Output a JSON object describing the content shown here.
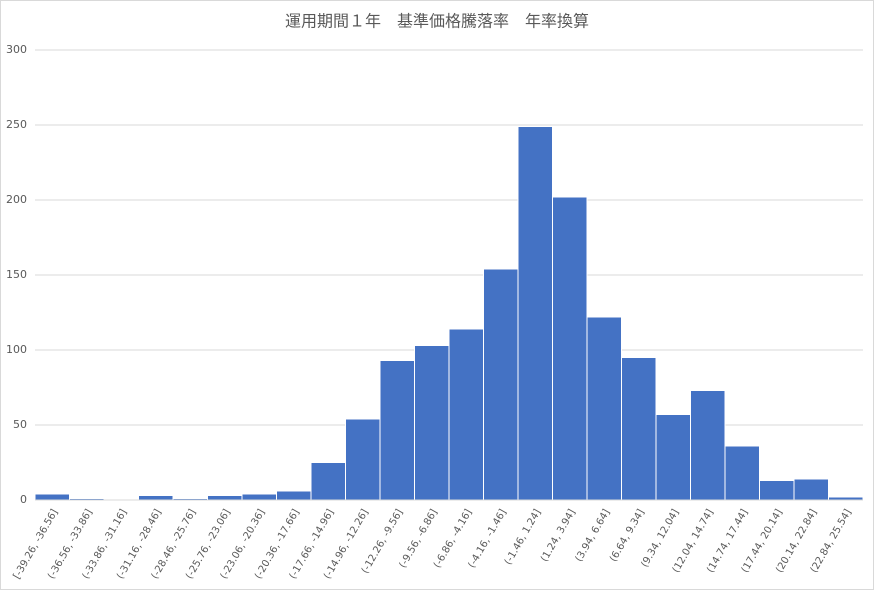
{
  "chart_data": {
    "type": "bar",
    "title": "運用期間１年　基準価格騰落率　年率換算",
    "categories": [
      "[-39.26, -36.56]",
      "(-36.56, -33.86]",
      "(-33.86, -31.16]",
      "(-31.16, -28.46]",
      "(-28.46, -25.76]",
      "(-25.76, -23.06]",
      "(-23.06, -20.36]",
      "(-20.36, -17.66]",
      "(-17.66, -14.96]",
      "(-14.96, -12.26]",
      "(-12.26, -9.56]",
      "(-9.56, -6.86]",
      "(-6.86, -4.16]",
      "(-4.16, -1.46]",
      "(-1.46, 1.24]",
      "(1.24, 3.94]",
      "(3.94, 6.64]",
      "(6.64, 9.34]",
      "(9.34, 12.04]",
      "(12.04, 14.74]",
      "(14.74, 17.44]",
      "(17.44, 20.14]",
      "(20.14, 22.84]",
      "(22.84, 25.54]"
    ],
    "values": [
      4,
      1,
      0,
      3,
      1,
      3,
      4,
      6,
      25,
      54,
      93,
      103,
      114,
      154,
      249,
      202,
      122,
      95,
      57,
      73,
      36,
      13,
      14,
      2
    ],
    "color": "#4472c4",
    "ylim": [
      0,
      300
    ],
    "yticks": [
      0,
      50,
      100,
      150,
      200,
      250,
      300
    ],
    "grid": true
  }
}
